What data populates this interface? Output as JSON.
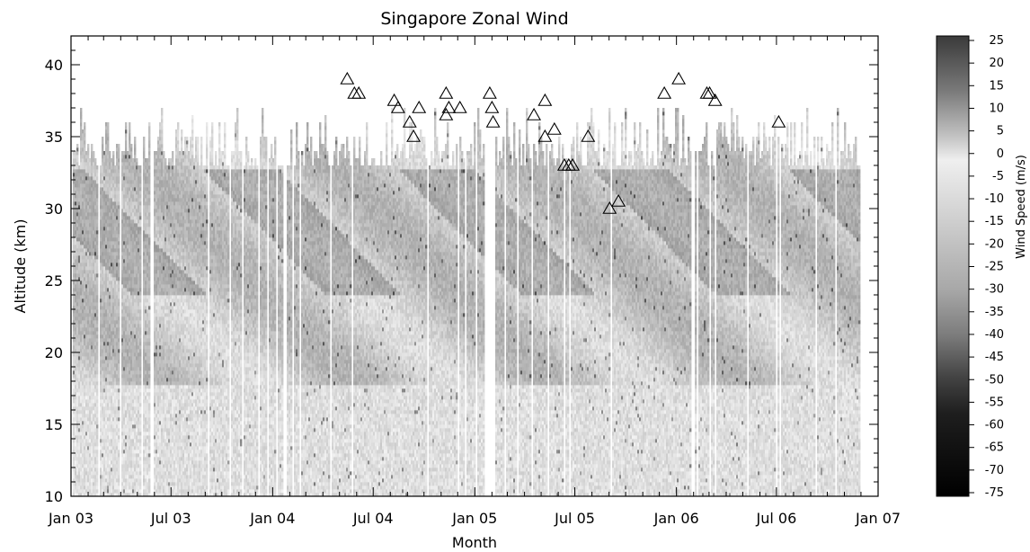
{
  "chart_data": {
    "type": "heatmap",
    "title": "Singapore Zonal Wind",
    "xlabel": "Month",
    "ylabel": "Altitude (km)",
    "x_ticks": [
      "Jan 03",
      "Jul 03",
      "Jan 04",
      "Jul 04",
      "Jan 05",
      "Jul 05",
      "Jan 06",
      "Jul 06",
      "Jan 07"
    ],
    "x_range": [
      "2003-01-01",
      "2007-01-01"
    ],
    "y_ticks": [
      10,
      15,
      20,
      25,
      30,
      35,
      40
    ],
    "ylim": [
      10,
      42
    ],
    "data_end": "2006-11-28",
    "colorbar": {
      "label": "Wind Speed (m/s)",
      "ticks": [
        25,
        20,
        15,
        10,
        5,
        0,
        -5,
        -10,
        -15,
        -20,
        -25,
        -30,
        -35,
        -40,
        -45,
        -50,
        -55,
        -60,
        -65,
        -70,
        -75
      ],
      "range": [
        -75,
        25
      ],
      "colors": [
        "#000000",
        "#3a3a3a",
        "#7a7a7a",
        "#bdbdbd",
        "#e8e8e8",
        "#c8c8c8",
        "#909090",
        "#404040"
      ]
    },
    "missing_data_gap": [
      "2005-01-20",
      "2005-02-05"
    ],
    "markers": {
      "symbol": "triangle",
      "points": [
        {
          "date": "2004-05-15",
          "alt": 39.0
        },
        {
          "date": "2004-05-28",
          "alt": 38.0
        },
        {
          "date": "2004-06-05",
          "alt": 38.0
        },
        {
          "date": "2004-08-08",
          "alt": 37.5
        },
        {
          "date": "2004-08-15",
          "alt": 37.0
        },
        {
          "date": "2004-09-05",
          "alt": 36.0
        },
        {
          "date": "2004-09-12",
          "alt": 35.0
        },
        {
          "date": "2004-09-22",
          "alt": 37.0
        },
        {
          "date": "2004-11-10",
          "alt": 38.0
        },
        {
          "date": "2004-11-10",
          "alt": 36.5
        },
        {
          "date": "2004-11-15",
          "alt": 37.0
        },
        {
          "date": "2004-12-05",
          "alt": 37.0
        },
        {
          "date": "2005-01-28",
          "alt": 38.0
        },
        {
          "date": "2005-02-01",
          "alt": 37.0
        },
        {
          "date": "2005-02-03",
          "alt": 36.0
        },
        {
          "date": "2005-04-18",
          "alt": 36.5
        },
        {
          "date": "2005-05-08",
          "alt": 37.5
        },
        {
          "date": "2005-05-08",
          "alt": 35.0
        },
        {
          "date": "2005-05-25",
          "alt": 35.5
        },
        {
          "date": "2005-06-12",
          "alt": 33.0
        },
        {
          "date": "2005-06-20",
          "alt": 33.0
        },
        {
          "date": "2005-06-27",
          "alt": 33.0
        },
        {
          "date": "2005-07-25",
          "alt": 35.0
        },
        {
          "date": "2005-09-02",
          "alt": 30.0
        },
        {
          "date": "2005-09-18",
          "alt": 30.5
        },
        {
          "date": "2005-12-10",
          "alt": 38.0
        },
        {
          "date": "2006-01-05",
          "alt": 39.0
        },
        {
          "date": "2006-02-25",
          "alt": 38.0
        },
        {
          "date": "2006-03-02",
          "alt": 38.0
        },
        {
          "date": "2006-03-12",
          "alt": 37.5
        },
        {
          "date": "2006-07-05",
          "alt": 36.0
        }
      ]
    }
  }
}
